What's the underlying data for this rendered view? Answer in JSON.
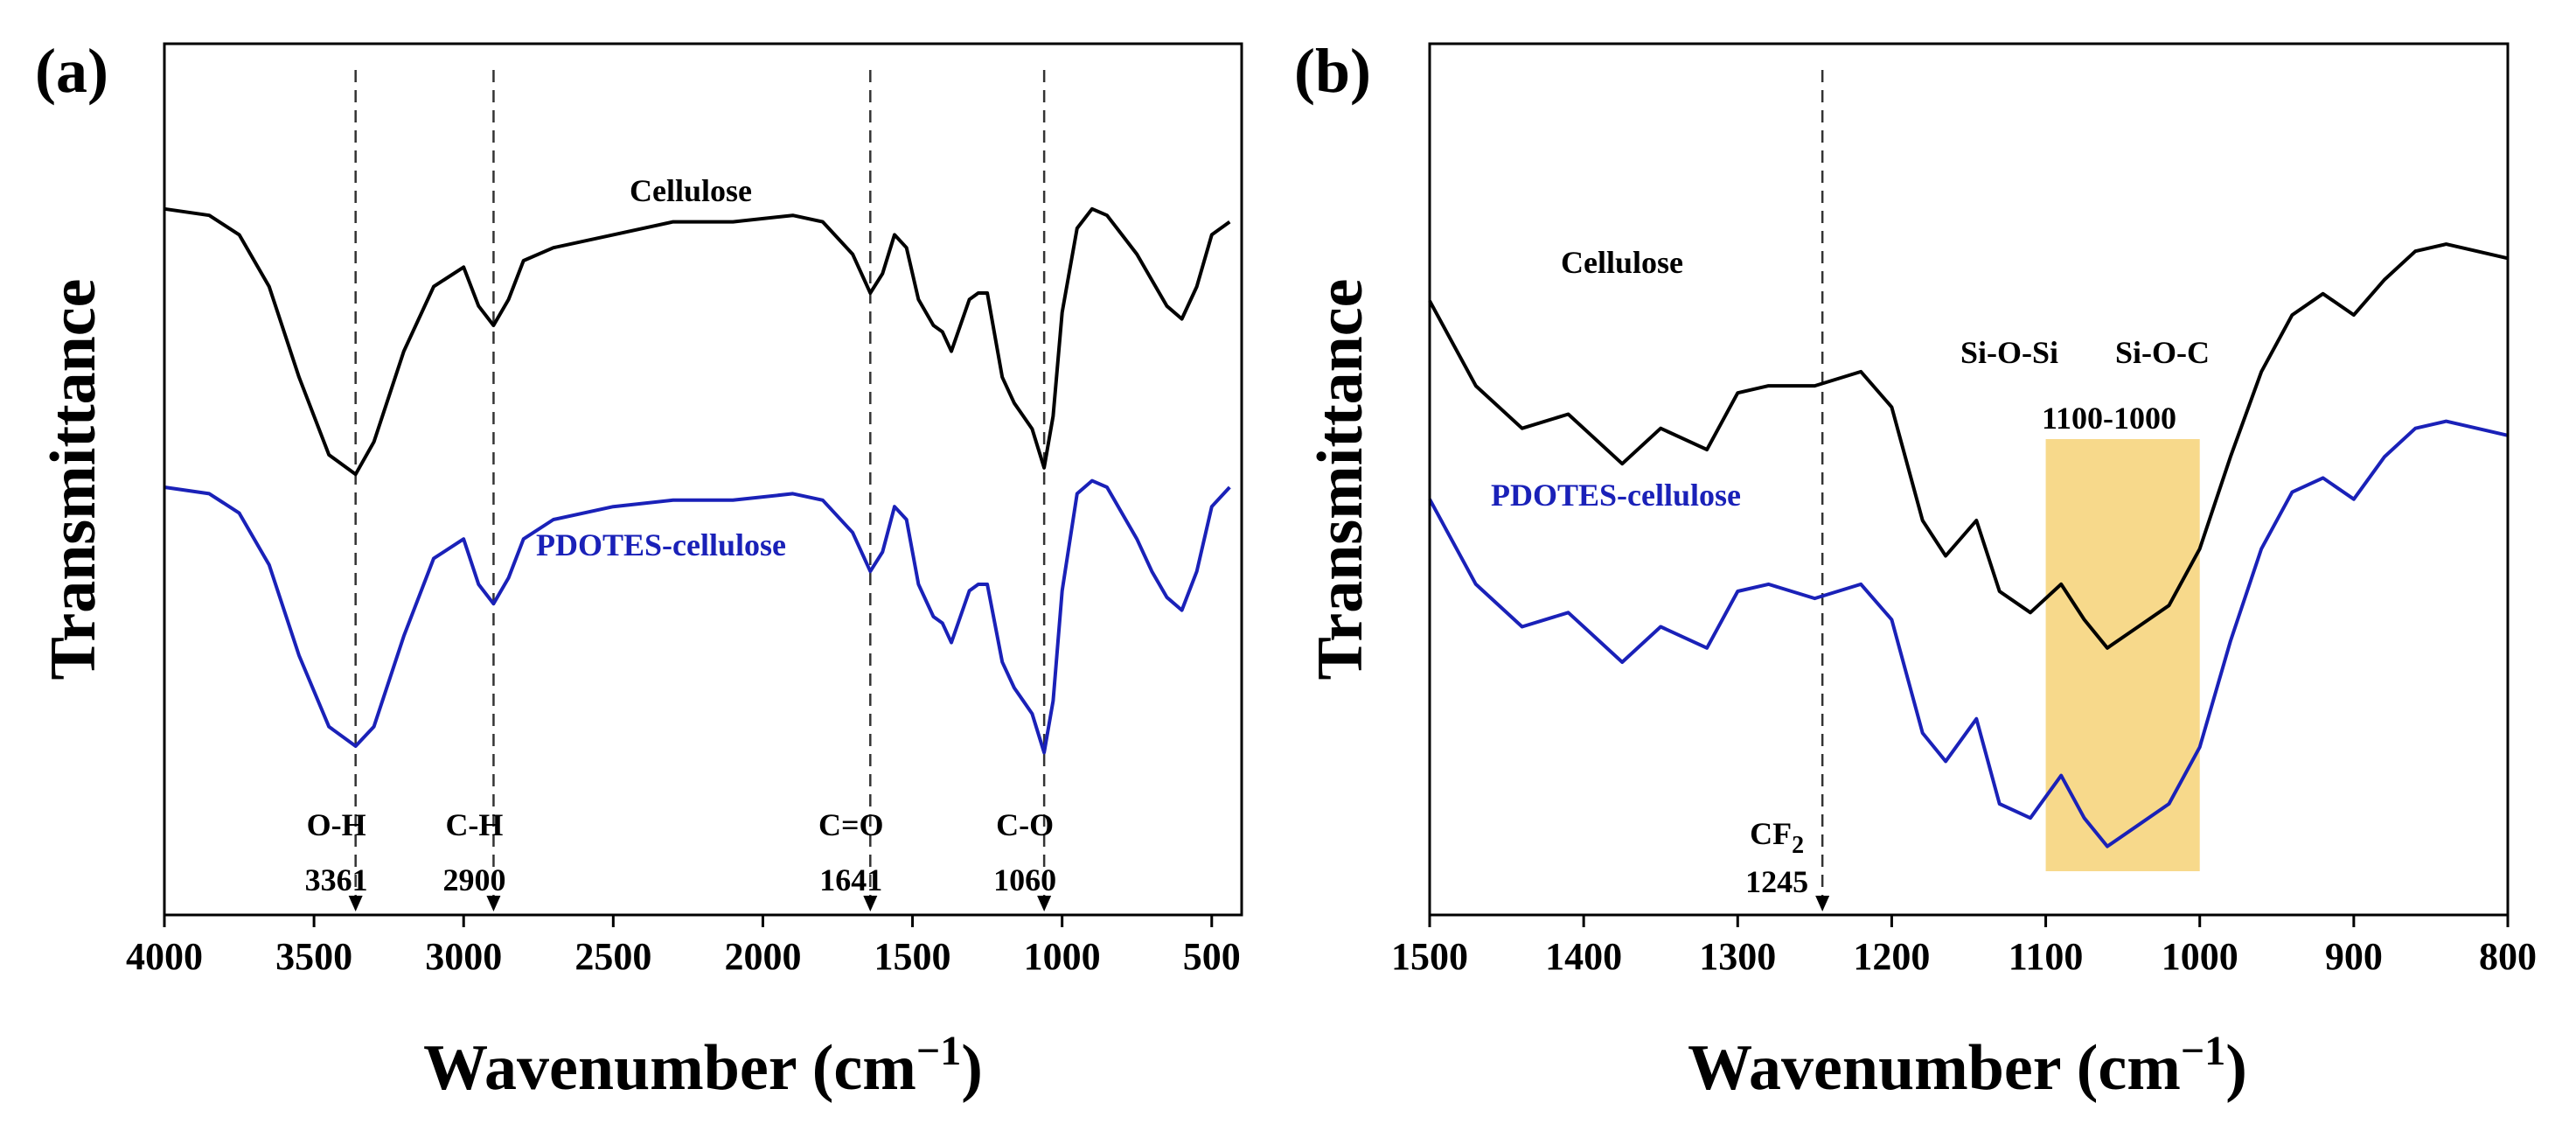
{
  "chart_data": [
    {
      "panel": "(a)",
      "type": "line",
      "xlabel": "Wavenumber (cm",
      "xlabel_sup": "−1",
      "xlabel_close": ")",
      "ylabel": "Transmittance",
      "xlim": [
        4000,
        400
      ],
      "ylim": [
        0,
        1
      ],
      "xticks": [
        4000,
        3500,
        3000,
        2500,
        2000,
        1500,
        1000,
        500
      ],
      "series": [
        {
          "name": "Cellulose",
          "color": "#000000",
          "x": [
            4000,
            3850,
            3750,
            3650,
            3550,
            3450,
            3361,
            3300,
            3200,
            3100,
            3000,
            2950,
            2900,
            2850,
            2800,
            2700,
            2500,
            2300,
            2100,
            1900,
            1800,
            1700,
            1641,
            1600,
            1560,
            1520,
            1480,
            1430,
            1400,
            1370,
            1340,
            1310,
            1280,
            1250,
            1200,
            1160,
            1130,
            1100,
            1060,
            1030,
            1000,
            950,
            900,
            850,
            800,
            750,
            700,
            650,
            600,
            550,
            500,
            440
          ],
          "y": [
            0.88,
            0.87,
            0.84,
            0.76,
            0.62,
            0.5,
            0.47,
            0.52,
            0.66,
            0.76,
            0.79,
            0.73,
            0.7,
            0.74,
            0.8,
            0.82,
            0.84,
            0.86,
            0.86,
            0.87,
            0.86,
            0.81,
            0.75,
            0.78,
            0.84,
            0.82,
            0.74,
            0.7,
            0.69,
            0.66,
            0.7,
            0.74,
            0.75,
            0.75,
            0.62,
            0.58,
            0.56,
            0.54,
            0.48,
            0.56,
            0.72,
            0.85,
            0.88,
            0.87,
            0.84,
            0.81,
            0.77,
            0.73,
            0.71,
            0.76,
            0.84,
            0.86
          ]
        },
        {
          "name": "PDOTES-cellulose",
          "color": "#1a21b8",
          "x": [
            4000,
            3850,
            3750,
            3650,
            3550,
            3450,
            3361,
            3300,
            3200,
            3100,
            3000,
            2950,
            2900,
            2850,
            2800,
            2700,
            2500,
            2300,
            2100,
            1900,
            1800,
            1700,
            1641,
            1600,
            1560,
            1520,
            1480,
            1430,
            1400,
            1370,
            1340,
            1310,
            1280,
            1250,
            1200,
            1160,
            1130,
            1100,
            1060,
            1030,
            1000,
            950,
            900,
            850,
            800,
            750,
            700,
            650,
            600,
            550,
            500,
            440
          ],
          "y": [
            0.45,
            0.44,
            0.41,
            0.33,
            0.19,
            0.08,
            0.05,
            0.08,
            0.22,
            0.34,
            0.37,
            0.3,
            0.27,
            0.31,
            0.37,
            0.4,
            0.42,
            0.43,
            0.43,
            0.44,
            0.43,
            0.38,
            0.32,
            0.35,
            0.42,
            0.4,
            0.3,
            0.25,
            0.24,
            0.21,
            0.25,
            0.29,
            0.3,
            0.3,
            0.18,
            0.14,
            0.12,
            0.1,
            0.04,
            0.12,
            0.29,
            0.44,
            0.46,
            0.45,
            0.41,
            0.37,
            0.32,
            0.28,
            0.26,
            0.32,
            0.42,
            0.45
          ]
        }
      ],
      "annotations": [
        {
          "x": 3361,
          "label": "O-H",
          "value": "3361"
        },
        {
          "x": 2900,
          "label": "C-H",
          "value": "2900"
        },
        {
          "x": 1641,
          "label": "C=O",
          "value": "1641"
        },
        {
          "x": 1060,
          "label": "C-O",
          "value": "1060"
        }
      ]
    },
    {
      "panel": "(b)",
      "type": "line",
      "xlabel": "Wavenumber (cm",
      "xlabel_sup": "−1",
      "xlabel_close": ")",
      "ylabel": "Transmittance",
      "xlim": [
        1500,
        800
      ],
      "ylim": [
        0,
        1
      ],
      "xticks": [
        1500,
        1400,
        1300,
        1200,
        1100,
        1000,
        900,
        800
      ],
      "series": [
        {
          "name": "Cellulose",
          "color": "#000000",
          "x": [
            1500,
            1470,
            1440,
            1410,
            1395,
            1375,
            1350,
            1320,
            1300,
            1280,
            1250,
            1220,
            1200,
            1180,
            1165,
            1145,
            1130,
            1110,
            1090,
            1075,
            1060,
            1040,
            1020,
            1000,
            980,
            960,
            940,
            920,
            900,
            880,
            860,
            840,
            820,
            800
          ],
          "y": [
            0.81,
            0.69,
            0.63,
            0.65,
            0.62,
            0.58,
            0.63,
            0.6,
            0.68,
            0.69,
            0.69,
            0.71,
            0.66,
            0.5,
            0.45,
            0.5,
            0.4,
            0.37,
            0.41,
            0.36,
            0.32,
            0.35,
            0.38,
            0.46,
            0.59,
            0.71,
            0.79,
            0.82,
            0.79,
            0.84,
            0.88,
            0.89,
            0.88,
            0.87
          ]
        },
        {
          "name": "PDOTES-cellulose",
          "color": "#1a21b8",
          "x": [
            1500,
            1470,
            1440,
            1410,
            1395,
            1375,
            1350,
            1320,
            1300,
            1280,
            1250,
            1220,
            1200,
            1180,
            1165,
            1145,
            1130,
            1110,
            1090,
            1075,
            1060,
            1040,
            1020,
            1000,
            980,
            960,
            940,
            920,
            900,
            880,
            860,
            840,
            820,
            800
          ],
          "y": [
            0.53,
            0.41,
            0.35,
            0.37,
            0.34,
            0.3,
            0.35,
            0.32,
            0.4,
            0.41,
            0.39,
            0.41,
            0.36,
            0.2,
            0.16,
            0.22,
            0.1,
            0.08,
            0.14,
            0.08,
            0.04,
            0.07,
            0.1,
            0.18,
            0.33,
            0.46,
            0.54,
            0.56,
            0.53,
            0.59,
            0.63,
            0.64,
            0.63,
            0.62
          ]
        }
      ],
      "annotations": [
        {
          "x": 1245,
          "label": "CF",
          "label_sub": "2",
          "value": "1245"
        }
      ],
      "highlight": {
        "from": 1100,
        "to": 1000,
        "color": "#f7d98b",
        "label": "1100-1000",
        "group_labels": [
          "Si-O-Si",
          "Si-O-C"
        ]
      }
    }
  ]
}
